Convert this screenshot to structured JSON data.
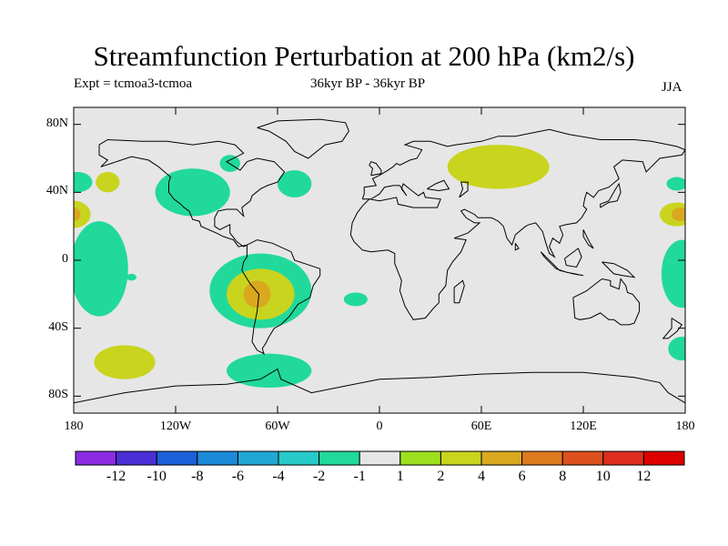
{
  "title": "Streamfunction Perturbation at 200 hPa (km2/s)",
  "subtitle_left": "Expt = tcmoa3-tcmoa",
  "subtitle_center": "36kyr BP - 36kyr BP",
  "subtitle_right": "JJA",
  "map": {
    "projection": "cylindrical-equidistant",
    "background_color": "#e6e6e6",
    "lat_range": [
      -90,
      90
    ],
    "lon_range": [
      -180,
      180
    ],
    "lat_ticks": [
      {
        "value": 80,
        "label": "80N"
      },
      {
        "value": 40,
        "label": "40N"
      },
      {
        "value": 0,
        "label": "0"
      },
      {
        "value": -40,
        "label": "40S"
      },
      {
        "value": -80,
        "label": "80S"
      }
    ],
    "lon_ticks": [
      {
        "value": -180,
        "label": "180"
      },
      {
        "value": -120,
        "label": "120W"
      },
      {
        "value": -60,
        "label": "60W"
      },
      {
        "value": 0,
        "label": "0"
      },
      {
        "value": 60,
        "label": "60E"
      },
      {
        "value": 120,
        "label": "120E"
      },
      {
        "value": 180,
        "label": "180"
      }
    ]
  },
  "chart_data": {
    "type": "heatmap",
    "title": "Streamfunction Perturbation at 200 hPa (km2/s)",
    "units": "km2/s",
    "levels": [
      -12,
      -10,
      -8,
      -6,
      -4,
      -2,
      -1,
      1,
      2,
      4,
      6,
      8,
      10,
      12
    ],
    "level_labels": [
      "-12",
      "-10",
      "-8",
      "-6",
      "-4",
      "-2",
      "-1",
      "1",
      "2",
      "4",
      "6",
      "8",
      "10",
      "12"
    ],
    "colors": [
      "#8a2be2",
      "#4b2fd6",
      "#1b5fd9",
      "#1c8ad8",
      "#1fa7d4",
      "#27c9c9",
      "#21d99a",
      "#e6e6e6",
      "#9ee01e",
      "#c9d41e",
      "#d9a81e",
      "#dc7a1e",
      "#dc501e",
      "#dc2d1e",
      "#dc0000"
    ],
    "regions": [
      {
        "name": "n-pacific-pos",
        "value": 2,
        "lon": -160,
        "lat": 46,
        "rlon": 7,
        "rlat": 6
      },
      {
        "name": "n-america-neg-west",
        "value": -2,
        "lon": -110,
        "lat": 40,
        "rlon": 22,
        "rlat": 14
      },
      {
        "name": "greenland-neg",
        "value": -2,
        "lon": -88,
        "lat": 57,
        "rlon": 6,
        "rlat": 5
      },
      {
        "name": "n-atlantic-neg",
        "value": -2,
        "lon": -50,
        "lat": 45,
        "rlon": 10,
        "rlat": 8
      },
      {
        "name": "w-pacific-edge-neg",
        "value": -2,
        "lon": -178,
        "lat": 46,
        "rlon": 9,
        "rlat": 6
      },
      {
        "name": "dateline-pos-west",
        "value": 2,
        "lon": -180,
        "lat": 27,
        "rlon": 10,
        "rlat": 8
      },
      {
        "name": "dateline-core-west",
        "value": 4,
        "lon": -180,
        "lat": 27,
        "rlon": 4,
        "rlat": 4
      },
      {
        "name": "e-pacific-neg",
        "value": -2,
        "lon": -165,
        "lat": -5,
        "rlon": 17,
        "rlat": 28
      },
      {
        "name": "small-pacific-neg",
        "value": -2,
        "lon": -146,
        "lat": -10,
        "rlon": 3,
        "rlat": 2
      },
      {
        "name": "s-america-neg",
        "value": -2,
        "lon": -70,
        "lat": -18,
        "rlon": 30,
        "rlat": 22
      },
      {
        "name": "s-america-pos",
        "value": 2,
        "lon": -70,
        "lat": -20,
        "rlon": 20,
        "rlat": 15
      },
      {
        "name": "s-america-core",
        "value": 4,
        "lon": -72,
        "lat": -20,
        "rlon": 8,
        "rlat": 8
      },
      {
        "name": "s-atlantic-neg",
        "value": -2,
        "lon": -14,
        "lat": -23,
        "rlon": 7,
        "rlat": 4
      },
      {
        "name": "s-pacific-pos",
        "value": 2,
        "lon": -150,
        "lat": -60,
        "rlon": 18,
        "rlat": 10
      },
      {
        "name": "drake-neg",
        "value": -2,
        "lon": -65,
        "lat": -65,
        "rlon": 25,
        "rlat": 10
      },
      {
        "name": "eurasia-pos",
        "value": 2,
        "lon": 70,
        "lat": 55,
        "rlon": 30,
        "rlat": 13
      },
      {
        "name": "e-pacific-edge-pos",
        "value": 2,
        "lon": 175,
        "lat": 27,
        "rlon": 10,
        "rlat": 7
      },
      {
        "name": "e-pacific-edge-core",
        "value": 4,
        "lon": 177,
        "lat": 27,
        "rlon": 5,
        "rlat": 4
      },
      {
        "name": "w-pacific-neg",
        "value": -2,
        "lon": 178,
        "lat": -8,
        "rlon": 12,
        "rlat": 20
      },
      {
        "name": "nz-neg",
        "value": -2,
        "lon": 178,
        "lat": -52,
        "rlon": 8,
        "rlat": 7
      },
      {
        "name": "hawaii-neg",
        "value": -2,
        "lon": 175,
        "lat": 45,
        "rlon": 6,
        "rlat": 4
      }
    ]
  }
}
